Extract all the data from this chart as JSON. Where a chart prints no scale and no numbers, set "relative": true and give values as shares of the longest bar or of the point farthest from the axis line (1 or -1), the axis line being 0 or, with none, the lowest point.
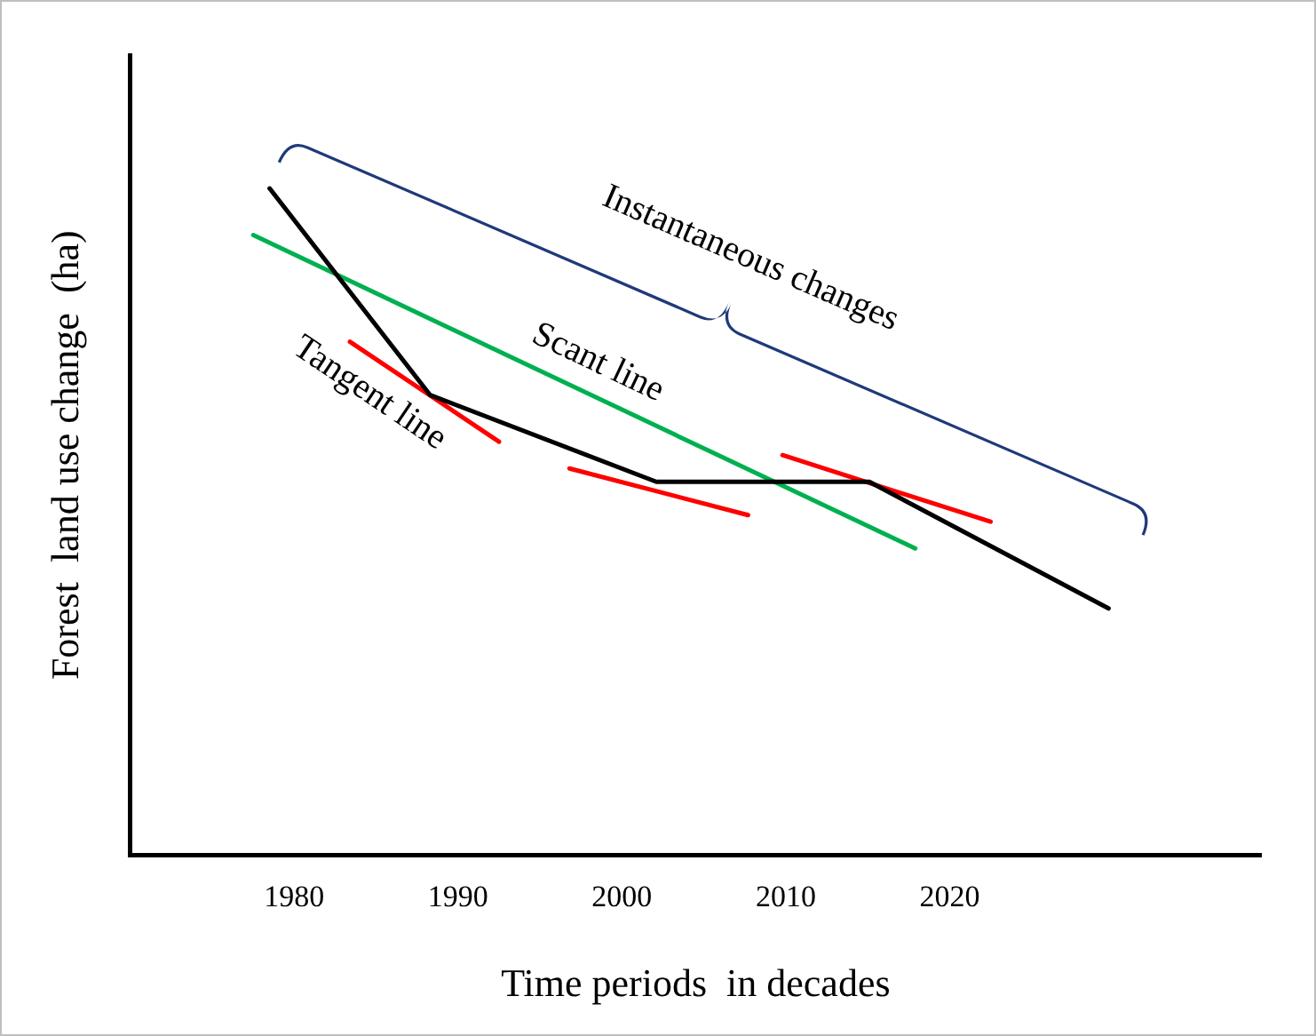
{
  "chart_data": {
    "type": "line",
    "relative": true,
    "xlabel": "Time periods  in decades",
    "ylabel": "Forest  land use change  (ha)",
    "xlim": [
      1970,
      2039
    ],
    "xticks": [
      1980,
      1990,
      2000,
      2010,
      2020
    ],
    "grid": false,
    "legend": false,
    "marker": "none",
    "line_style": "solid",
    "annotations": [
      "Instantaneous changes"
    ],
    "series": [
      {
        "color": "#000000",
        "x": [
          1978.5,
          1988.3,
          2002.1,
          2015.1,
          2029.7
        ],
        "values": [
          1,
          0.69,
          0.56,
          0.56,
          0.37
        ]
      },
      {
        "name": "Scant line",
        "color": "#00b050",
        "x": [
          1977.5,
          2017.9
        ],
        "values": [
          0.93,
          0.46
        ]
      },
      {
        "name": "Tangent line",
        "color": "#ff0000",
        "x": [
          1983.4,
          1992.5,
          1995,
          1996.8,
          2007.7,
          2009,
          2009.8,
          2022.5
        ],
        "values": [
          0.77,
          0.62,
          null,
          0.58,
          0.51,
          null,
          0.6,
          0.5
        ]
      }
    ]
  }
}
